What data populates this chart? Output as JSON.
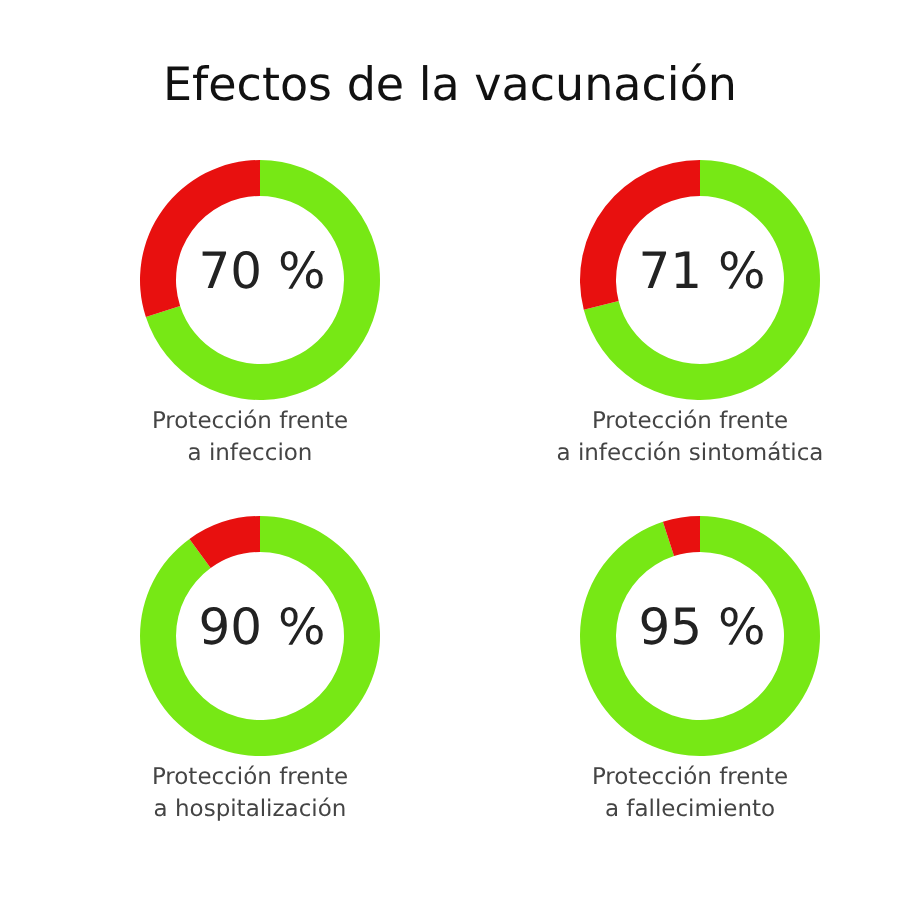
{
  "chart_data": [
    {
      "type": "donut",
      "title": "Efectos de la vacunación",
      "xlabel": "Protección frente\na infeccion",
      "categories": [
        null,
        null
      ],
      "values": [
        70,
        30
      ],
      "colors": [
        "#77e815",
        "#e8100f"
      ],
      "value_labels": [
        "70 %",
        null
      ]
    },
    {
      "type": "donut",
      "xlabel": "Protección frente\na infección sintomática",
      "categories": [
        null,
        null
      ],
      "values": [
        71,
        29
      ],
      "colors": [
        "#77e815",
        "#e8100f"
      ],
      "value_labels": [
        "71 %",
        null
      ]
    },
    {
      "type": "donut",
      "xlabel": "Protección frente\na hospitalización",
      "categories": [
        null,
        null
      ],
      "values": [
        90,
        10
      ],
      "colors": [
        "#77e815",
        "#e8100f"
      ],
      "value_labels": [
        "90 %",
        null
      ]
    },
    {
      "type": "donut",
      "xlabel": "Protección frente\na fallecimiento",
      "categories": [
        null,
        null
      ],
      "values": [
        95,
        5
      ],
      "colors": [
        "#77e815",
        "#e8100f"
      ],
      "value_labels": [
        "95 %",
        null
      ]
    }
  ]
}
